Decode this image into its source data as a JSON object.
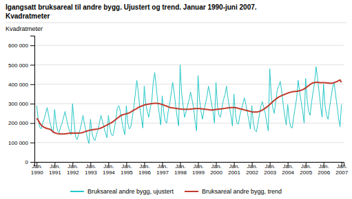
{
  "chart_data": {
    "type": "line",
    "title": "Igangsatt bruksareal til andre bygg. Ujustert og trend. Januar 1990-juni 2007.",
    "subtitle": "Kvadratmeter",
    "y_label": "Kvadratmeter",
    "categories": [
      "Jan.\n1990",
      null,
      null,
      null,
      null,
      null,
      null,
      null,
      null,
      null,
      null,
      null,
      "Jan.\n1991",
      null,
      null,
      null,
      null,
      null,
      null,
      null,
      null,
      null,
      null,
      null,
      "Jan.\n1992",
      null,
      null,
      null,
      null,
      null,
      null,
      null,
      null,
      null,
      null,
      null,
      "Jan.\n1993",
      null,
      null,
      null,
      null,
      null,
      null,
      null,
      null,
      null,
      null,
      null,
      "Jan.\n1994",
      null,
      null,
      null,
      null,
      null,
      null,
      null,
      null,
      null,
      null,
      null,
      "Jan.\n1995",
      null,
      null,
      null,
      null,
      null,
      null,
      null,
      null,
      null,
      null,
      null,
      "Jan.\n1996",
      null,
      null,
      null,
      null,
      null,
      null,
      null,
      null,
      null,
      null,
      null,
      "Jan.\n1997",
      null,
      null,
      null,
      null,
      null,
      null,
      null,
      null,
      null,
      null,
      null,
      "Jan.\n1998",
      null,
      null,
      null,
      null,
      null,
      null,
      null,
      null,
      null,
      null,
      null,
      "Jan.\n1999",
      null,
      null,
      null,
      null,
      null,
      null,
      null,
      null,
      null,
      null,
      null,
      "Jan.\n2000",
      null,
      null,
      null,
      null,
      null,
      null,
      null,
      null,
      null,
      null,
      null,
      "Jan.\n2001",
      null,
      null,
      null,
      null,
      null,
      null,
      null,
      null,
      null,
      null,
      null,
      "Jan.\n2002",
      null,
      null,
      null,
      null,
      null,
      null,
      null,
      null,
      null,
      null,
      null,
      "Jan.\n2003",
      null,
      null,
      null,
      null,
      null,
      null,
      null,
      null,
      null,
      null,
      null,
      "Jan.\n2004",
      null,
      null,
      null,
      null,
      null,
      null,
      null,
      null,
      null,
      null,
      null,
      "Jan.\n2005",
      null,
      null,
      null,
      null,
      null,
      null,
      null,
      null,
      null,
      null,
      null,
      "Jan.\n2006",
      null,
      null,
      null,
      null,
      null,
      null,
      null,
      null,
      null,
      null,
      null,
      "Jan.\n2007"
    ],
    "series": [
      {
        "name": "Bruksareal andre bygg, ujustert",
        "color": "#26C6C6",
        "values": [
          290000,
          220000,
          180000,
          170000,
          200000,
          220000,
          250000,
          280000,
          240000,
          200000,
          170000,
          150000,
          270000,
          200000,
          160000,
          150000,
          180000,
          200000,
          230000,
          260000,
          220000,
          185000,
          160000,
          140000,
          300000,
          210000,
          130000,
          115000,
          140000,
          165000,
          200000,
          240000,
          195000,
          160000,
          120000,
          95000,
          220000,
          150000,
          120000,
          110000,
          140000,
          165000,
          200000,
          240000,
          210000,
          180000,
          150000,
          125000,
          240000,
          175000,
          140000,
          135000,
          170000,
          220000,
          280000,
          290000,
          260000,
          210000,
          170000,
          140000,
          290000,
          200000,
          170000,
          180000,
          230000,
          280000,
          350000,
          420000,
          360000,
          280000,
          230000,
          175000,
          390000,
          300000,
          260000,
          230000,
          280000,
          310000,
          410000,
          460000,
          390000,
          310000,
          250000,
          190000,
          340000,
          260000,
          210000,
          200000,
          260000,
          300000,
          350000,
          410000,
          360000,
          290000,
          230000,
          185000,
          500000,
          355000,
          290000,
          230000,
          260000,
          290000,
          320000,
          360000,
          320000,
          280000,
          210000,
          160000,
          445000,
          320000,
          260000,
          220000,
          270000,
          300000,
          340000,
          390000,
          350000,
          300000,
          260000,
          200000,
          410000,
          290000,
          240000,
          230000,
          280000,
          320000,
          345000,
          390000,
          330000,
          280000,
          240000,
          185000,
          350000,
          250000,
          200000,
          195000,
          240000,
          270000,
          300000,
          330000,
          295000,
          255000,
          215000,
          170000,
          290000,
          200000,
          165000,
          155000,
          195000,
          240000,
          285000,
          310000,
          280000,
          250000,
          200000,
          160000,
          480000,
          340000,
          280000,
          250000,
          310000,
          370000,
          390000,
          415000,
          365000,
          295000,
          240000,
          190000,
          295000,
          220000,
          180000,
          175000,
          230000,
          280000,
          330000,
          420000,
          360000,
          310000,
          260000,
          200000,
          430000,
          320000,
          260000,
          240000,
          310000,
          360000,
          410000,
          490000,
          430000,
          360000,
          290000,
          230000,
          400000,
          290000,
          240000,
          220000,
          280000,
          330000,
          380000,
          410000,
          350000,
          290000,
          230000,
          180000,
          295000
        ]
      },
      {
        "name": "Bruksareal andre bygg, trend",
        "color": "#C0392B",
        "values": [
          225000,
          215000,
          200000,
          190000,
          183000,
          178000,
          175000,
          172000,
          170000,
          168000,
          162000,
          155000,
          150000,
          148000,
          146000,
          145000,
          144000,
          144000,
          144000,
          145000,
          146000,
          147000,
          148000,
          148000,
          148000,
          148000,
          148000,
          148000,
          148000,
          149000,
          150000,
          152000,
          155000,
          158000,
          160000,
          162000,
          164000,
          165000,
          167000,
          168000,
          169000,
          170000,
          172000,
          175000,
          178000,
          182000,
          186000,
          190000,
          194000,
          198000,
          202000,
          207000,
          213000,
          219000,
          225000,
          231000,
          237000,
          241000,
          244000,
          246000,
          248000,
          250000,
          253000,
          257000,
          262000,
          267000,
          271000,
          275000,
          280000,
          284000,
          287000,
          290000,
          293000,
          295000,
          297000,
          298000,
          299000,
          300000,
          301000,
          302000,
          302000,
          301000,
          300000,
          298000,
          296000,
          293000,
          290000,
          287000,
          284000,
          281000,
          279000,
          278000,
          277000,
          276000,
          275000,
          274000,
          273000,
          272000,
          271000,
          271000,
          271000,
          271000,
          271000,
          272000,
          273000,
          274000,
          275000,
          275000,
          275000,
          275000,
          274000,
          273000,
          272000,
          271000,
          270000,
          269000,
          268000,
          268000,
          268000,
          269000,
          270000,
          271000,
          272000,
          273000,
          274000,
          275000,
          276000,
          277000,
          278000,
          279000,
          280000,
          280000,
          280000,
          279000,
          278000,
          276000,
          274000,
          272000,
          270000,
          268000,
          266000,
          264000,
          262000,
          260000,
          258000,
          257000,
          257000,
          257000,
          258000,
          260000,
          263000,
          267000,
          272000,
          277000,
          283000,
          289000,
          296000,
          303000,
          310000,
          317000,
          323000,
          329000,
          334000,
          338000,
          342000,
          345000,
          348000,
          351000,
          354000,
          357000,
          359000,
          361000,
          362000,
          363000,
          364000,
          365000,
          367000,
          369000,
          372000,
          376000,
          381000,
          387000,
          393000,
          399000,
          404000,
          407000,
          409000,
          410000,
          410000,
          409000,
          408000,
          408000,
          408000,
          408000,
          407000,
          406000,
          405000,
          405000,
          406000,
          408000,
          411000,
          414000,
          418000,
          422000,
          410000
        ]
      }
    ],
    "ylim": [
      0,
      650000
    ],
    "yticks": [
      0,
      {
        "value": 100000,
        "label": "100 000"
      },
      {
        "value": 200000,
        "label": "200 000"
      },
      {
        "value": 300000,
        "label": "300 000"
      },
      {
        "value": 400000,
        "label": "400 000"
      },
      {
        "value": 500000,
        "label": "500 000"
      },
      {
        "value": 600000,
        "label": "600 000"
      }
    ],
    "grid": true
  }
}
